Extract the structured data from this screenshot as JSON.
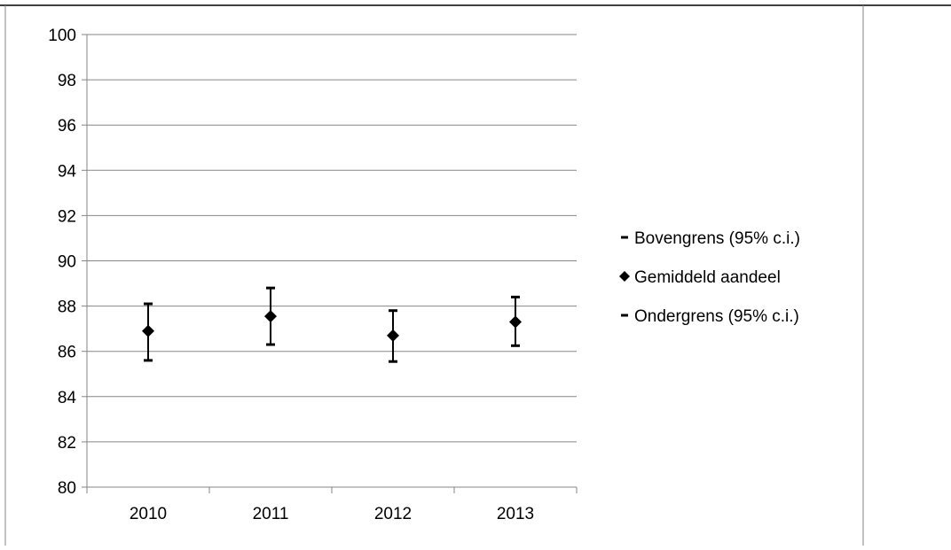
{
  "chart_data": {
    "type": "scatter",
    "title": "",
    "xlabel": "",
    "ylabel": "",
    "categories": [
      "2010",
      "2011",
      "2012",
      "2013"
    ],
    "ylim": [
      80,
      100
    ],
    "yticks": [
      "80",
      "82",
      "84",
      "86",
      "88",
      "90",
      "92",
      "94",
      "96",
      "98",
      "100"
    ],
    "grid": "horizontal",
    "legend_position": "right",
    "series": [
      {
        "name": "Bovengrens (95% c.i.)",
        "marker": "dash",
        "values": [
          88.1,
          88.8,
          87.8,
          88.4
        ]
      },
      {
        "name": "Gemiddeld aandeel",
        "marker": "diamond",
        "values": [
          86.9,
          87.55,
          86.7,
          87.3
        ]
      },
      {
        "name": "Ondergrens (95% c.i.)",
        "marker": "dash",
        "values": [
          85.6,
          86.3,
          85.55,
          86.25
        ]
      }
    ],
    "colors": {
      "marks": "#000000",
      "grid": "#868686",
      "frame": "#868686"
    }
  }
}
